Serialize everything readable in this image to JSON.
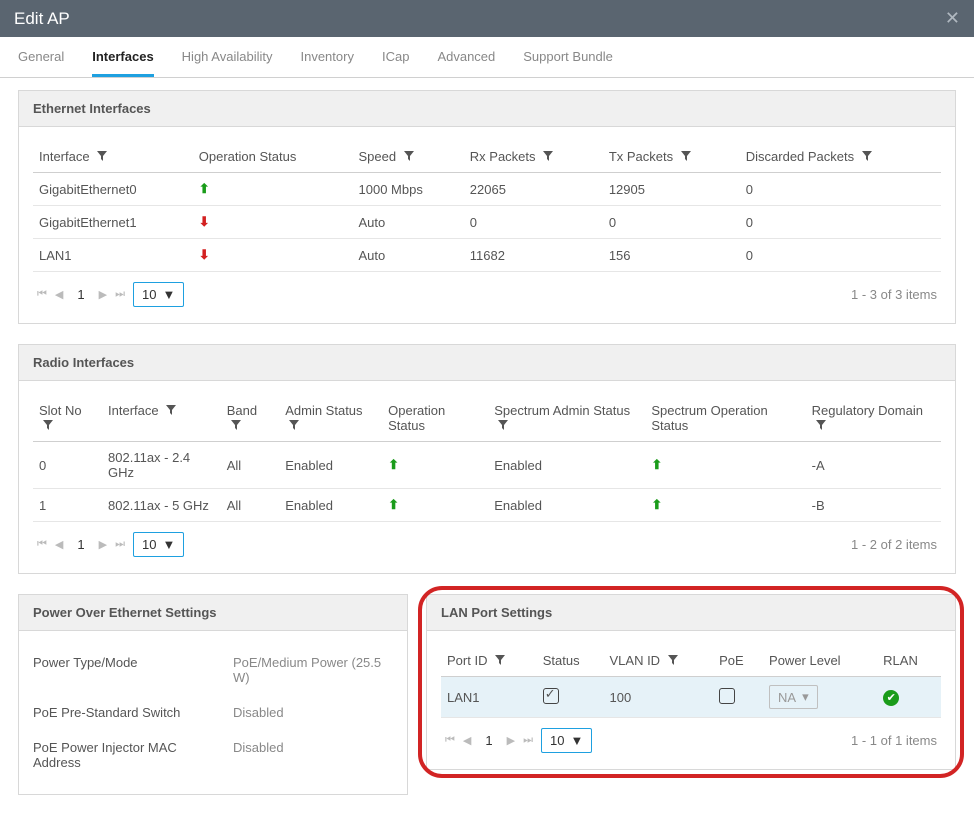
{
  "window": {
    "title": "Edit AP"
  },
  "tabs": [
    "General",
    "Interfaces",
    "High Availability",
    "Inventory",
    "ICap",
    "Advanced",
    "Support Bundle"
  ],
  "active_tab": 1,
  "eth": {
    "title": "Ethernet Interfaces",
    "cols": [
      "Interface",
      "Operation Status",
      "Speed",
      "Rx Packets",
      "Tx Packets",
      "Discarded Packets"
    ],
    "rows": [
      {
        "iface": "GigabitEthernet0",
        "op": "up",
        "speed": "1000 Mbps",
        "rx": "22065",
        "tx": "12905",
        "disc": "0"
      },
      {
        "iface": "GigabitEthernet1",
        "op": "down",
        "speed": "Auto",
        "rx": "0",
        "tx": "0",
        "disc": "0"
      },
      {
        "iface": "LAN1",
        "op": "down",
        "speed": "Auto",
        "rx": "11682",
        "tx": "156",
        "disc": "0"
      }
    ],
    "page": "1",
    "page_size": "10",
    "info": "1 - 3 of 3 items"
  },
  "radio": {
    "title": "Radio Interfaces",
    "cols": [
      "Slot No",
      "Interface",
      "Band",
      "Admin Status",
      "Operation Status",
      "Spectrum Admin Status",
      "Spectrum Operation Status",
      "Regulatory Domain"
    ],
    "rows": [
      {
        "slot": "0",
        "iface": "802.11ax - 2.4 GHz",
        "band": "All",
        "admin": "Enabled",
        "op": "up",
        "sadmin": "Enabled",
        "sop": "up",
        "reg": "-A"
      },
      {
        "slot": "1",
        "iface": "802.11ax - 5 GHz",
        "band": "All",
        "admin": "Enabled",
        "op": "up",
        "sadmin": "Enabled",
        "sop": "up",
        "reg": "-B"
      }
    ],
    "page": "1",
    "page_size": "10",
    "info": "1 - 2 of 2 items"
  },
  "poe": {
    "title": "Power Over Ethernet Settings",
    "rows": [
      {
        "k": "Power Type/Mode",
        "v": "PoE/Medium Power (25.5 W)"
      },
      {
        "k": "PoE Pre-Standard Switch",
        "v": "Disabled"
      },
      {
        "k": "PoE Power Injector MAC Address",
        "v": "Disabled"
      }
    ]
  },
  "lan": {
    "title": "LAN Port Settings",
    "cols": [
      "Port ID",
      "Status",
      "VLAN ID",
      "PoE",
      "Power Level",
      "RLAN"
    ],
    "row": {
      "port": "LAN1",
      "status": true,
      "vlan": "100",
      "poe": false,
      "power": "NA",
      "rlan": true
    },
    "page": "1",
    "page_size": "10",
    "info": "1 - 1 of 1 items"
  },
  "colors": {
    "accent": "#1ea0e0",
    "up": "#1a9c1a",
    "down": "#d32121",
    "ring": "#d22424"
  }
}
